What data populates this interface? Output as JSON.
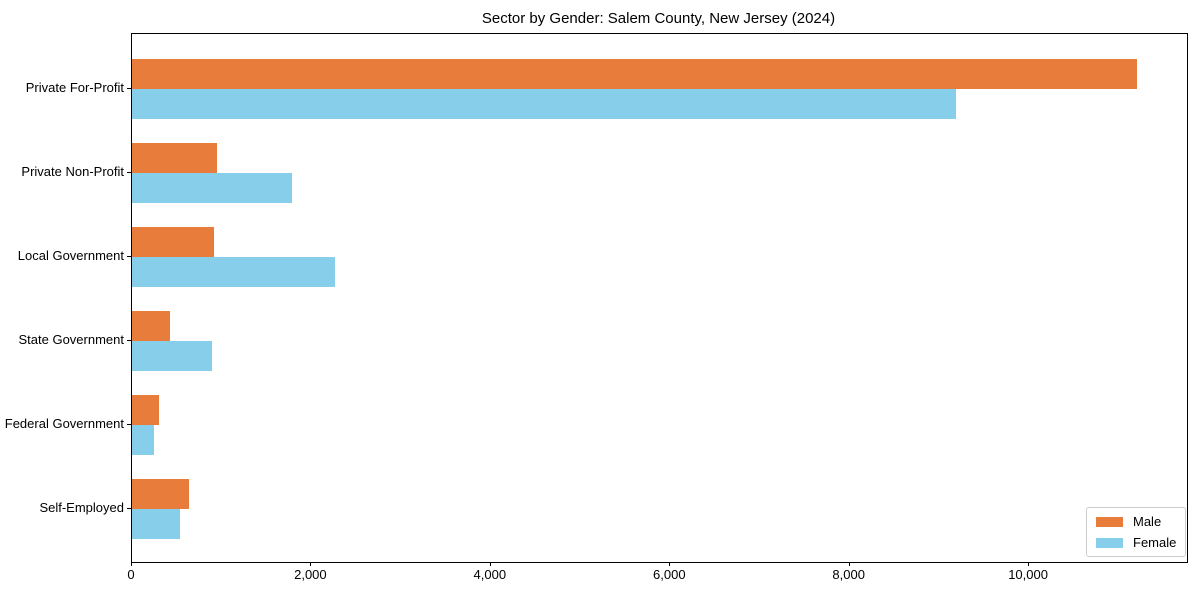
{
  "title": "Sector by Gender: Salem County, New Jersey (2024)",
  "colors": {
    "male": "#e87d3b",
    "female": "#87ceeb",
    "axis": "#000000",
    "legend_border": "#cccccc"
  },
  "chart_data": {
    "type": "bar",
    "orientation": "horizontal",
    "title": "Sector by Gender: Salem County, New Jersey (2024)",
    "categories": [
      "Private For-Profit",
      "Private Non-Profit",
      "Local Government",
      "State Government",
      "Federal Government",
      "Self-Employed"
    ],
    "series": [
      {
        "name": "Male",
        "color": "#e87d3b",
        "values": [
          11200,
          950,
          910,
          425,
          300,
          635
        ]
      },
      {
        "name": "Female",
        "color": "#87ceeb",
        "values": [
          9190,
          1780,
          2265,
          890,
          245,
          535
        ]
      }
    ],
    "xlabel": "",
    "ylabel": "",
    "xlim": [
      0,
      11760
    ],
    "xticks": [
      0,
      2000,
      4000,
      6000,
      8000,
      10000
    ],
    "xtick_labels": [
      "0",
      "2,000",
      "4,000",
      "6,000",
      "8,000",
      "10,000"
    ],
    "grid": false,
    "legend_position": "lower right"
  }
}
